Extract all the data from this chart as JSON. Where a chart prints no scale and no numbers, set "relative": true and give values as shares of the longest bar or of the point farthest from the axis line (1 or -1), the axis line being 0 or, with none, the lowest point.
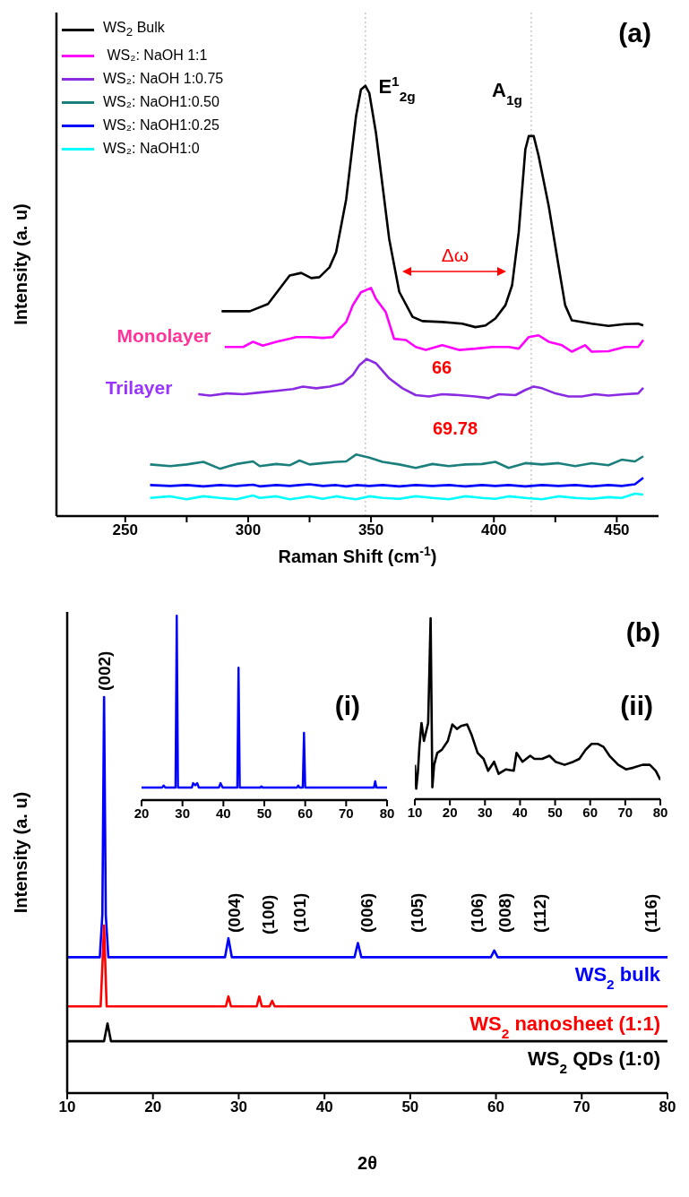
{
  "chart_data": [
    {
      "type": "line",
      "relative": true,
      "xlabel": "Raman Shift (cm$^{-1}$)",
      "ylabel": "Intensity (a. u)",
      "xlim": [
        222,
        467
      ],
      "xticks": [
        250,
        {
          "value": 275,
          "label": null
        },
        300,
        {
          "value": 325,
          "label": null
        },
        350,
        {
          "value": 375,
          "label": null
        },
        400,
        {
          "value": 425,
          "label": null
        },
        450
      ],
      "legend": "top left",
      "series": [
        {
          "name": "WS$_{2}$ Bulk",
          "color": "#000000",
          "x": [
            289.2,
            300.7,
            308.1,
            316.9,
            321.6,
            325.7,
            329,
            333.1,
            335.8,
            339.9,
            343.9,
            345.9,
            347.7,
            349.3,
            352,
            357.4,
            361.5,
            366.9,
            370.9,
            379,
            387.1,
            392.5,
            396.6,
            400.6,
            404.7,
            407.4,
            410.1,
            412.8,
            414.2,
            416.2,
            418.2,
            422.3,
            426.3,
            429,
            431.7,
            439.8,
            446.6,
            453.3,
            458.7,
            460.8
          ],
          "values": [
            0.476,
            0.476,
            0.493,
            0.559,
            0.565,
            0.553,
            0.555,
            0.578,
            0.613,
            0.736,
            0.929,
            0.991,
            1,
            0.983,
            0.891,
            0.644,
            0.521,
            0.463,
            0.453,
            0.451,
            0.447,
            0.439,
            0.443,
            0.459,
            0.49,
            0.536,
            0.659,
            0.852,
            0.883,
            0.883,
            0.837,
            0.721,
            0.582,
            0.49,
            0.455,
            0.447,
            0.442,
            0.446,
            0.447,
            0.443
          ]
        },
        {
          "name": " WS₂: NaOH 1:1",
          "color": "#ff00ff",
          "x": [
            290.5,
            298,
            302,
            306,
            311.5,
            317,
            319.6,
            325,
            330.4,
            334.4,
            337.2,
            339.9,
            342.6,
            345.9,
            350,
            352,
            356,
            359.4,
            364.2,
            368.2,
            372.3,
            379,
            385.8,
            392.5,
            399.3,
            406,
            410.1,
            414.2,
            418.2,
            422.3,
            427.7,
            431.7,
            437.1,
            439.8,
            446.6,
            453.3,
            458.7,
            460.8
          ],
          "values": [
            0.393,
            0.393,
            0.405,
            0.396,
            0.405,
            0.412,
            0.416,
            0.416,
            0.414,
            0.416,
            0.436,
            0.451,
            0.49,
            0.52,
            0.53,
            0.505,
            0.474,
            0.412,
            0.409,
            0.393,
            0.386,
            0.397,
            0.386,
            0.389,
            0.393,
            0.393,
            0.389,
            0.416,
            0.42,
            0.405,
            0.397,
            0.382,
            0.397,
            0.382,
            0.383,
            0.393,
            0.393,
            0.409
          ]
        },
        {
          "name": "WS₂: NaOH 1:0.75",
          "color": "#8a2be2",
          "x": [
            279.7,
            284.5,
            291.2,
            298,
            304.7,
            311.5,
            318.2,
            322.3,
            327.7,
            333.1,
            338.5,
            342.6,
            345.3,
            348.2,
            352,
            357.4,
            362.8,
            368.2,
            373.6,
            379,
            385.8,
            392.5,
            397.9,
            402,
            408.8,
            412.8,
            416.2,
            419.6,
            425,
            430.4,
            435.8,
            441.2,
            446.6,
            453.3,
            458.7,
            460.8
          ],
          "values": [
            0.283,
            0.28,
            0.285,
            0.283,
            0.287,
            0.291,
            0.295,
            0.301,
            0.297,
            0.301,
            0.308,
            0.328,
            0.351,
            0.365,
            0.355,
            0.32,
            0.297,
            0.281,
            0.278,
            0.283,
            0.281,
            0.278,
            0.274,
            0.283,
            0.281,
            0.293,
            0.301,
            0.297,
            0.285,
            0.278,
            0.278,
            0.283,
            0.28,
            0.283,
            0.285,
            0.298
          ]
        },
        {
          "name": "WS₂: NaOH1:0.50",
          "color": "#1b7f7b",
          "x": [
            260.1,
            268.3,
            275,
            281.8,
            288.5,
            295.3,
            302,
            304.7,
            311.5,
            316.9,
            320.9,
            325,
            330.4,
            335.8,
            339.9,
            343.9,
            349.3,
            354.7,
            361.5,
            368.2,
            375,
            381.7,
            388.5,
            395.2,
            400.6,
            406,
            412.8,
            419.6,
            426.3,
            433.1,
            439.8,
            446.6,
            452,
            457.4,
            460.8
          ],
          "values": [
            0.12,
            0.116,
            0.12,
            0.126,
            0.11,
            0.121,
            0.127,
            0.116,
            0.121,
            0.118,
            0.129,
            0.12,
            0.123,
            0.126,
            0.127,
            0.143,
            0.136,
            0.126,
            0.12,
            0.112,
            0.121,
            0.116,
            0.12,
            0.121,
            0.126,
            0.112,
            0.123,
            0.12,
            0.123,
            0.116,
            0.123,
            0.118,
            0.131,
            0.127,
            0.139
          ]
        },
        {
          "name": "WS₂: NaOH1:0.25",
          "color": "#0000ff",
          "x": [
            260.1,
            268.3,
            275,
            281.8,
            288.5,
            295.3,
            302,
            304.7,
            311.5,
            316.9,
            320.9,
            325,
            330.4,
            335.8,
            339.9,
            343.9,
            349.3,
            354.7,
            361.5,
            368.2,
            375,
            381.7,
            388.5,
            395.2,
            400.6,
            406,
            412.8,
            419.6,
            426.3,
            433.1,
            439.8,
            446.6,
            452,
            457.4,
            460.8
          ],
          "values": [
            0.072,
            0.07,
            0.072,
            0.069,
            0.072,
            0.07,
            0.073,
            0.069,
            0.072,
            0.07,
            0.072,
            0.074,
            0.07,
            0.072,
            0.069,
            0.072,
            0.07,
            0.072,
            0.069,
            0.072,
            0.07,
            0.072,
            0.069,
            0.072,
            0.07,
            0.072,
            0.069,
            0.072,
            0.07,
            0.072,
            0.069,
            0.072,
            0.07,
            0.074,
            0.089
          ]
        },
        {
          "name": "WS₂: NaOH1:0",
          "color": "#00ffff",
          "x": [
            260.1,
            268.3,
            275,
            281.8,
            288.5,
            295.3,
            302,
            304.7,
            311.5,
            316.9,
            320.9,
            325,
            330.4,
            335.8,
            339.9,
            343.9,
            349.3,
            354.7,
            361.5,
            368.2,
            375,
            381.7,
            388.5,
            395.2,
            400.6,
            406,
            412.8,
            419.6,
            426.3,
            433.1,
            439.8,
            446.6,
            452,
            457.4,
            460.8
          ],
          "values": [
            0.042,
            0.046,
            0.039,
            0.046,
            0.042,
            0.039,
            0.048,
            0.042,
            0.046,
            0.039,
            0.042,
            0.046,
            0.04,
            0.046,
            0.042,
            0.039,
            0.046,
            0.042,
            0.04,
            0.046,
            0.042,
            0.039,
            0.046,
            0.042,
            0.04,
            0.046,
            0.042,
            0.039,
            0.046,
            0.042,
            0.04,
            0.044,
            0.042,
            0.052,
            0.05
          ]
        }
      ],
      "ref_lines": [
        {
          "axis": "x",
          "value": 347.7,
          "color": "#c8c8c8",
          "line_style": "dotted"
        },
        {
          "axis": "x",
          "value": 415.2,
          "color": "#c8c8c8",
          "line_style": "dotted"
        }
      ],
      "annotations": [
        "(a)",
        "E$^{1}$$_{2g}$",
        "A$_{1g}$",
        "Δω",
        "66",
        "69.78",
        "Monolayer",
        "Trilayer"
      ]
    },
    {
      "type": "line",
      "relative": true,
      "xlabel": "2θ",
      "ylabel": "Intensity (a. u)",
      "xlim": [
        10,
        80
      ],
      "xticks": [
        10,
        20,
        30,
        40,
        50,
        60,
        70,
        80
      ],
      "series": [
        {
          "name": "WS$_{2}$ bulk",
          "color": "#0000ff",
          "x": [
            10,
            13.8,
            14.1,
            14.3,
            14.5,
            14.8,
            28.4,
            28.8,
            29.2,
            43.5,
            43.9,
            44.3,
            59.4,
            59.8,
            60.2,
            80
          ],
          "values": [
            0.343,
            0.343,
            0.45,
            1,
            0.45,
            0.343,
            0.343,
            0.391,
            0.343,
            0.343,
            0.379,
            0.343,
            0.343,
            0.36,
            0.343,
            0.343
          ]
        },
        {
          "name": "WS$_{2}$ nanosheet (1:1)",
          "color": "#ff0000",
          "x": [
            10,
            13.9,
            14.3,
            14.6,
            28.5,
            28.8,
            29.1,
            32.1,
            32.4,
            32.7,
            33.6,
            33.9,
            34.2,
            80
          ],
          "values": [
            0.219,
            0.219,
            0.423,
            0.219,
            0.219,
            0.244,
            0.219,
            0.219,
            0.244,
            0.219,
            0.219,
            0.233,
            0.219,
            0.219
          ]
        },
        {
          "name": "WS$_{2}$ QDs (1:0)",
          "color": "#000000",
          "x": [
            10,
            14.3,
            14.7,
            15.1,
            80
          ],
          "values": [
            0.131,
            0.131,
            0.176,
            0.131,
            0.131
          ]
        }
      ],
      "annotations": [
        "(b)",
        "(002)",
        "(004)",
        "(100)",
        "(101)",
        "(006)",
        "(105)",
        "(106)",
        "(008)",
        "(112)",
        "(116)"
      ]
    },
    {
      "type": "line",
      "relative": true,
      "xlim": [
        20,
        80
      ],
      "xticks": [
        20,
        30,
        40,
        50,
        60,
        70,
        80
      ],
      "series": [
        {
          "color": "#0000ff",
          "x": [
            20,
            25,
            25.4,
            25.8,
            28.3,
            28.6,
            28.9,
            32.3,
            32.6,
            33.1,
            33.6,
            34,
            38.9,
            39.3,
            39.8,
            43.4,
            43.7,
            44,
            49,
            49.3,
            49.6,
            58,
            58.3,
            58.6,
            59.4,
            59.7,
            60,
            76.8,
            77.1,
            77.4,
            80
          ],
          "values": [
            0.068,
            0.068,
            0.079,
            0.068,
            0.068,
            1,
            0.068,
            0.068,
            0.092,
            0.08,
            0.092,
            0.068,
            0.068,
            0.092,
            0.068,
            0.068,
            0.718,
            0.068,
            0.068,
            0.074,
            0.068,
            0.068,
            0.079,
            0.068,
            0.068,
            0.364,
            0.068,
            0.068,
            0.102,
            0.068,
            0.068
          ]
        }
      ],
      "annotations": [
        "(i)"
      ]
    },
    {
      "type": "line",
      "relative": true,
      "xlim": [
        10,
        80
      ],
      "xticks": [
        10,
        20,
        30,
        40,
        50,
        60,
        70,
        80
      ],
      "series": [
        {
          "color": "#000000",
          "x": [
            10,
            10.4,
            10.9,
            11.3,
            11.9,
            12.6,
            13.2,
            13.8,
            14.5,
            15,
            15.5,
            16.4,
            17.7,
            19.4,
            20.7,
            22,
            23.2,
            24.9,
            26.2,
            27.9,
            29.6,
            30.9,
            32.6,
            33.9,
            36,
            38.2,
            39,
            40.7,
            42.9,
            44.1,
            46.3,
            48.4,
            50.1,
            52.7,
            55.2,
            56.9,
            58.7,
            60.4,
            62.1,
            63.8,
            65.5,
            68,
            70.2,
            72.3,
            74.9,
            77,
            78.7,
            80
          ],
          "values": [
            0.19,
            0.058,
            0.157,
            0.289,
            0.421,
            0.322,
            0.372,
            0.421,
            1,
            0.066,
            0.19,
            0.256,
            0.273,
            0.322,
            0.413,
            0.388,
            0.405,
            0.413,
            0.355,
            0.256,
            0.223,
            0.157,
            0.207,
            0.14,
            0.165,
            0.157,
            0.256,
            0.207,
            0.24,
            0.223,
            0.223,
            0.24,
            0.207,
            0.19,
            0.207,
            0.223,
            0.273,
            0.306,
            0.306,
            0.289,
            0.24,
            0.19,
            0.165,
            0.174,
            0.19,
            0.19,
            0.157,
            0.107
          ]
        }
      ],
      "annotations": [
        "(ii)"
      ]
    }
  ]
}
